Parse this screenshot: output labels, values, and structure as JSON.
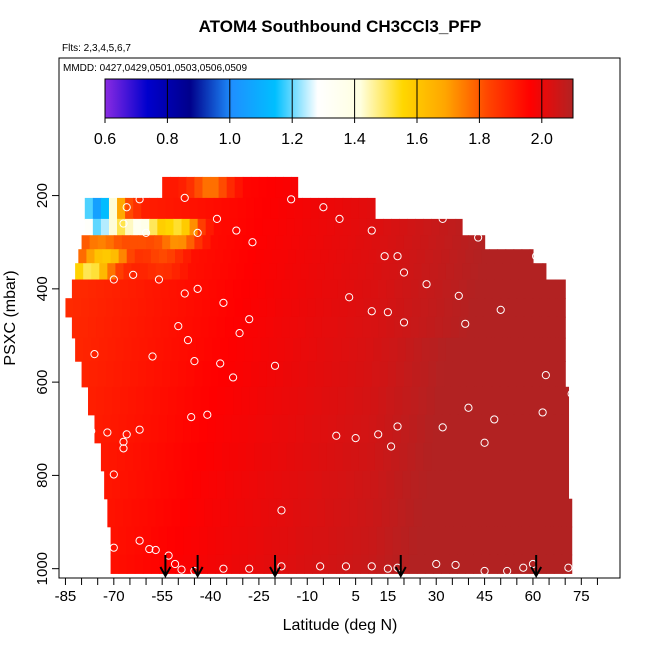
{
  "chart_data": {
    "type": "heatmap",
    "title": "ATOM4 Southbound CH3CCl3_PFP",
    "flights_label": "Flts: 2,3,4,5,6,7",
    "dates_label": "MMDD: 0427,0429,0501,0503,0506,0509",
    "xlabel": "Latitude (deg N)",
    "ylabel": "PSXC (mbar)",
    "x_ticks": [
      -85,
      -70,
      -55,
      -40,
      -25,
      -10,
      5,
      15,
      30,
      45,
      60,
      75
    ],
    "x_tick_labels": [
      "-85",
      "-70",
      "-55",
      "-40",
      "-25",
      "-10",
      "5",
      "15",
      "30",
      "45",
      "60",
      "75"
    ],
    "xlim": [
      -87,
      87
    ],
    "y_ticks": [
      200,
      400,
      600,
      800,
      1000
    ],
    "y_tick_labels": [
      "200",
      "400",
      "600",
      "800",
      "1000"
    ],
    "ylim": [
      1020,
      -95
    ],
    "colorbar": {
      "ticks": [
        0.6,
        0.8,
        1.0,
        1.2,
        1.4,
        1.6,
        1.8,
        2.0
      ],
      "tick_labels": [
        "0.6",
        "0.8",
        "1.0",
        "1.2",
        "1.4",
        "1.6",
        "1.8",
        "2.0"
      ],
      "range": [
        0.6,
        2.1
      ],
      "colors": [
        "#8a2be2",
        "#0000cd",
        "#00008b",
        "#1e90ff",
        "#00bfff",
        "#ffffff",
        "#ffffe0",
        "#ffd700",
        "#ffa500",
        "#ff4500",
        "#ff0000",
        "#b22222"
      ]
    },
    "profile_latitudes": [
      -54,
      -44,
      -20,
      19,
      61
    ],
    "field": {
      "rows": [
        {
          "p": 180,
          "lat_min": -55,
          "lat_max": -13
        },
        {
          "p": 230,
          "lat_min": -79,
          "lat_max": 11
        },
        {
          "p": 270,
          "lat_min": -79,
          "lat_max": 38
        },
        {
          "p": 300,
          "lat_min": -80,
          "lat_max": 45
        },
        {
          "p": 330,
          "lat_min": -81,
          "lat_max": 60
        },
        {
          "p": 360,
          "lat_min": -82,
          "lat_max": 64
        },
        {
          "p": 400,
          "lat_min": -83,
          "lat_max": 70
        },
        {
          "p": 440,
          "lat_min": -85,
          "lat_max": 70
        },
        {
          "p": 480,
          "lat_min": -83,
          "lat_max": 70
        },
        {
          "p": 530,
          "lat_min": -82,
          "lat_max": 70
        },
        {
          "p": 580,
          "lat_min": -80,
          "lat_max": 70
        },
        {
          "p": 640,
          "lat_min": -78,
          "lat_max": 71
        },
        {
          "p": 700,
          "lat_min": -76,
          "lat_max": 71
        },
        {
          "p": 760,
          "lat_min": -74,
          "lat_max": 71
        },
        {
          "p": 820,
          "lat_min": -73,
          "lat_max": 71
        },
        {
          "p": 880,
          "lat_min": -72,
          "lat_max": 72
        },
        {
          "p": 940,
          "lat_min": -71,
          "lat_max": 72
        },
        {
          "p": 1000,
          "lat_min": -71,
          "lat_max": 72
        }
      ],
      "anomalies": [
        {
          "lat": -75,
          "p": 230,
          "value": 1.05
        },
        {
          "lat": -75,
          "p": 270,
          "value": 1.2
        },
        {
          "lat": -62,
          "p": 270,
          "value": 1.35
        },
        {
          "lat": -50,
          "p": 280,
          "value": 1.45
        },
        {
          "lat": -78,
          "p": 360,
          "value": 1.5
        },
        {
          "lat": -72,
          "p": 330,
          "value": 1.6
        },
        {
          "lat": -40,
          "p": 185,
          "value": 1.75
        },
        {
          "lat": -55,
          "p": 340,
          "value": 1.8
        }
      ]
    },
    "samples": [
      {
        "lat": -82,
        "p": 240
      },
      {
        "lat": -66,
        "p": 225
      },
      {
        "lat": -62,
        "p": 208
      },
      {
        "lat": -48,
        "p": 205
      },
      {
        "lat": -67,
        "p": 260
      },
      {
        "lat": -60,
        "p": 280
      },
      {
        "lat": -44,
        "p": 280
      },
      {
        "lat": -38,
        "p": 250
      },
      {
        "lat": -32,
        "p": 275
      },
      {
        "lat": -27,
        "p": 300
      },
      {
        "lat": -15,
        "p": 208
      },
      {
        "lat": -5,
        "p": 225
      },
      {
        "lat": 0,
        "p": 250
      },
      {
        "lat": 10,
        "p": 275
      },
      {
        "lat": 22,
        "p": 220
      },
      {
        "lat": 32,
        "p": 250
      },
      {
        "lat": 43,
        "p": 290
      },
      {
        "lat": 51,
        "p": 290
      },
      {
        "lat": 61,
        "p": 330
      },
      {
        "lat": 18,
        "p": 330
      },
      {
        "lat": 14,
        "p": 330
      },
      {
        "lat": 20,
        "p": 365
      },
      {
        "lat": -70,
        "p": 380
      },
      {
        "lat": -64,
        "p": 370
      },
      {
        "lat": -56,
        "p": 380
      },
      {
        "lat": -48,
        "p": 410
      },
      {
        "lat": -44,
        "p": 400
      },
      {
        "lat": -36,
        "p": 430
      },
      {
        "lat": 3,
        "p": 418
      },
      {
        "lat": 27,
        "p": 390
      },
      {
        "lat": 37,
        "p": 415
      },
      {
        "lat": 71,
        "p": 370
      },
      {
        "lat": -28,
        "p": 465
      },
      {
        "lat": -50,
        "p": 480
      },
      {
        "lat": -47,
        "p": 510
      },
      {
        "lat": -31,
        "p": 495
      },
      {
        "lat": 10,
        "p": 448
      },
      {
        "lat": 15,
        "p": 450
      },
      {
        "lat": 20,
        "p": 472
      },
      {
        "lat": 39,
        "p": 475
      },
      {
        "lat": 50,
        "p": 445
      },
      {
        "lat": -76,
        "p": 540
      },
      {
        "lat": -58,
        "p": 545
      },
      {
        "lat": -45,
        "p": 555
      },
      {
        "lat": -37,
        "p": 560
      },
      {
        "lat": -20,
        "p": 565
      },
      {
        "lat": -33,
        "p": 590
      },
      {
        "lat": 64,
        "p": 585
      },
      {
        "lat": 72,
        "p": 625
      },
      {
        "lat": -46,
        "p": 675
      },
      {
        "lat": -41,
        "p": 670
      },
      {
        "lat": 40,
        "p": 655
      },
      {
        "lat": 63,
        "p": 665
      },
      {
        "lat": -77,
        "p": 705
      },
      {
        "lat": -72,
        "p": 708
      },
      {
        "lat": -66,
        "p": 712
      },
      {
        "lat": -62,
        "p": 702
      },
      {
        "lat": -1,
        "p": 715
      },
      {
        "lat": 5,
        "p": 720
      },
      {
        "lat": 12,
        "p": 712
      },
      {
        "lat": 18,
        "p": 695
      },
      {
        "lat": 32,
        "p": 697
      },
      {
        "lat": 48,
        "p": 680
      },
      {
        "lat": 16,
        "p": 738
      },
      {
        "lat": -67,
        "p": 728
      },
      {
        "lat": -67,
        "p": 742
      },
      {
        "lat": -70,
        "p": 798
      },
      {
        "lat": 45,
        "p": 730
      },
      {
        "lat": -18,
        "p": 875
      },
      {
        "lat": -74,
        "p": 965
      },
      {
        "lat": -70,
        "p": 955
      },
      {
        "lat": -62,
        "p": 940
      },
      {
        "lat": -59,
        "p": 958
      },
      {
        "lat": -57,
        "p": 960
      },
      {
        "lat": -53,
        "p": 972
      },
      {
        "lat": -51,
        "p": 990
      },
      {
        "lat": -49,
        "p": 1002
      },
      {
        "lat": -45,
        "p": 1005
      },
      {
        "lat": -36,
        "p": 1000
      },
      {
        "lat": -28,
        "p": 1000
      },
      {
        "lat": -18,
        "p": 995
      },
      {
        "lat": -6,
        "p": 995
      },
      {
        "lat": 2,
        "p": 995
      },
      {
        "lat": 10,
        "p": 995
      },
      {
        "lat": 15,
        "p": 1000
      },
      {
        "lat": 18,
        "p": 998
      },
      {
        "lat": 30,
        "p": 990
      },
      {
        "lat": 36,
        "p": 992
      },
      {
        "lat": 45,
        "p": 1005
      },
      {
        "lat": 52,
        "p": 1005
      },
      {
        "lat": 57,
        "p": 998
      },
      {
        "lat": 60,
        "p": 990
      },
      {
        "lat": 71,
        "p": 998
      }
    ]
  }
}
